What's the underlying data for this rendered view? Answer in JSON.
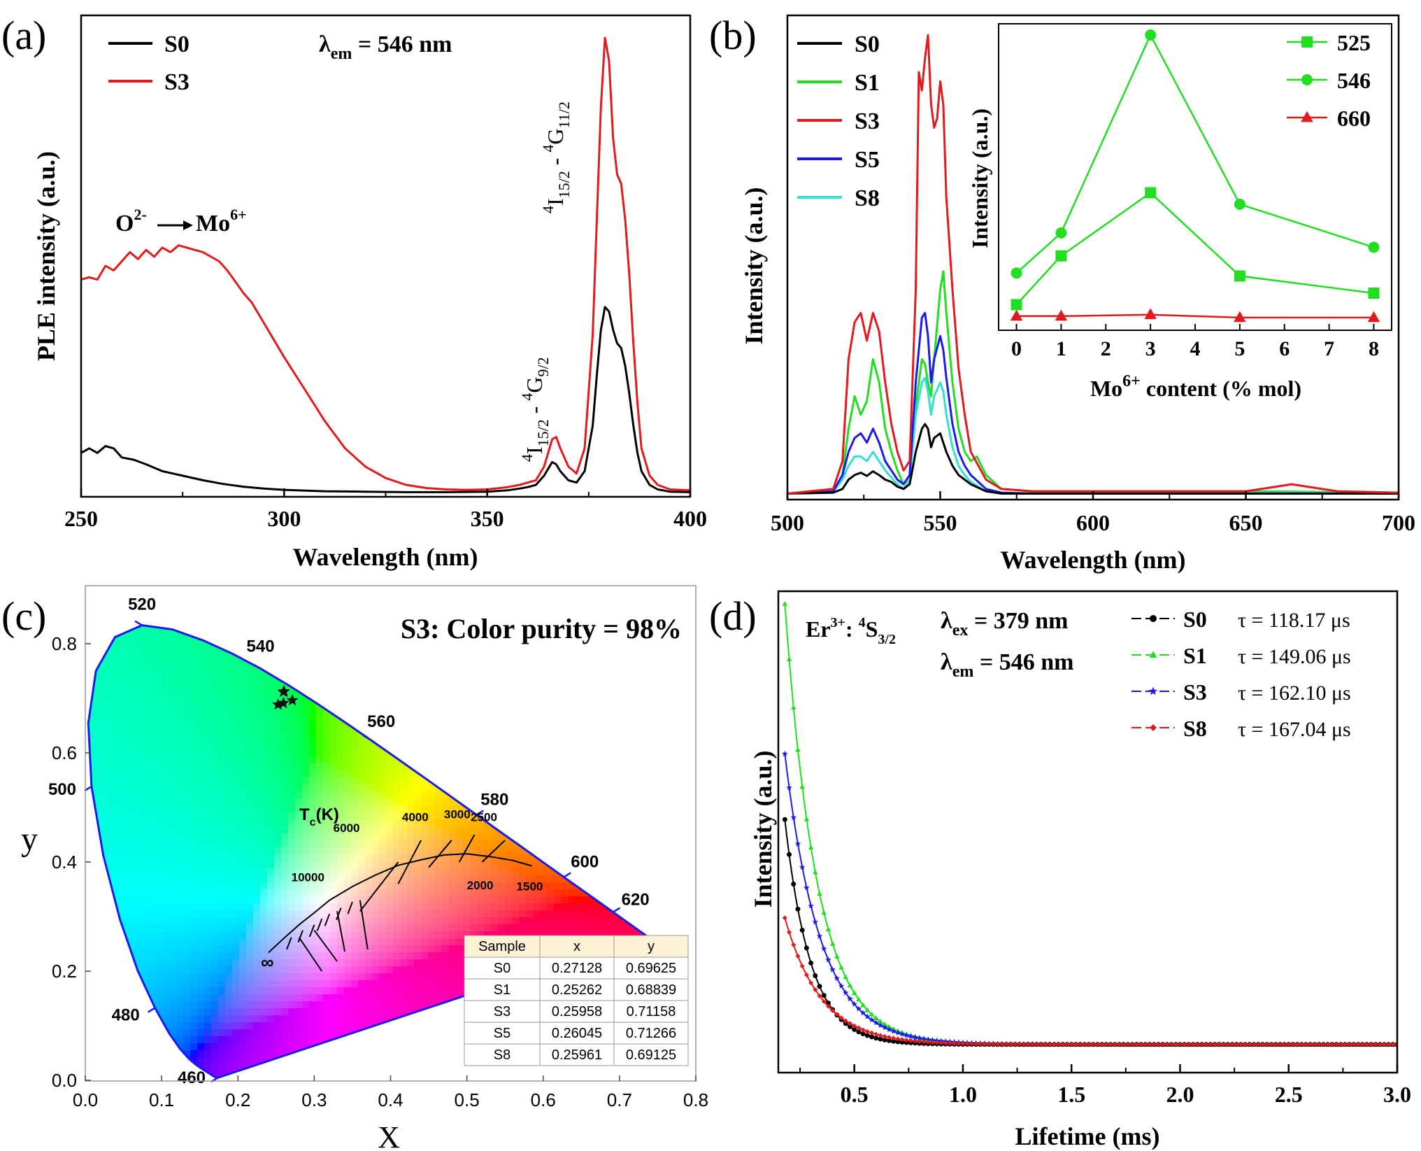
{
  "panel_labels": [
    "(a)",
    "(b)",
    "(c)",
    "(d)"
  ],
  "chart_data": [
    {
      "panel": "(a)",
      "type": "line",
      "xlabel": "Wavelength (nm)",
      "ylabel": "PLE intensity (a.u.)",
      "xlim": [
        250,
        400
      ],
      "xticks": [
        250,
        300,
        350,
        400
      ],
      "ylim": [
        0,
        1.0
      ],
      "annotation_lambda": {
        "main": "λ",
        "sub": "em",
        "rest": " = 546 nm"
      },
      "annotation_ct": {
        "left": "O",
        "left_sup": "2-",
        "right": "Mo",
        "right_sup": "6+"
      },
      "annotation_t1": {
        "sup1": "4",
        "a": "I",
        "sub_a": "15/2",
        "mid": " - ",
        "sup2": "4",
        "b": "G",
        "sub_b": "9/2"
      },
      "annotation_t2": {
        "sup1": "4",
        "a": "I",
        "sub_a": "15/2",
        "mid": " - ",
        "sup2": "4",
        "b": "G",
        "sub_b": "11/2"
      },
      "series": [
        {
          "name": "S0",
          "color": "#000000",
          "x": [
            250,
            252,
            254,
            256,
            258,
            260,
            263,
            266,
            270,
            275,
            280,
            285,
            290,
            295,
            300,
            310,
            320,
            330,
            340,
            350,
            355,
            358,
            360,
            362,
            364,
            366,
            367,
            368,
            370,
            372,
            374,
            376,
            377,
            378,
            379,
            380,
            381,
            382,
            383,
            384,
            385,
            386,
            387,
            388,
            390,
            392,
            395,
            400
          ],
          "y": [
            0.09,
            0.1,
            0.09,
            0.105,
            0.1,
            0.08,
            0.075,
            0.065,
            0.05,
            0.04,
            0.03,
            0.022,
            0.016,
            0.012,
            0.009,
            0.006,
            0.005,
            0.004,
            0.004,
            0.005,
            0.008,
            0.012,
            0.015,
            0.02,
            0.04,
            0.07,
            0.065,
            0.05,
            0.03,
            0.025,
            0.05,
            0.15,
            0.26,
            0.36,
            0.41,
            0.4,
            0.36,
            0.33,
            0.32,
            0.28,
            0.22,
            0.15,
            0.09,
            0.05,
            0.02,
            0.01,
            0.005,
            0.004
          ]
        },
        {
          "name": "S3",
          "color": "#e31a1c",
          "x": [
            250,
            252,
            254,
            256,
            258,
            260,
            262,
            264,
            266,
            268,
            270,
            272,
            274,
            276,
            278,
            280,
            282,
            284,
            286,
            288,
            290,
            292,
            294,
            296,
            298,
            300,
            305,
            310,
            315,
            320,
            325,
            330,
            335,
            340,
            345,
            350,
            355,
            358,
            360,
            362,
            364,
            366,
            367,
            368,
            370,
            372,
            374,
            376,
            377,
            378,
            379,
            380,
            381,
            382,
            383,
            384,
            385,
            386,
            387,
            388,
            390,
            392,
            395,
            400
          ],
          "y": [
            0.47,
            0.475,
            0.47,
            0.5,
            0.49,
            0.51,
            0.53,
            0.515,
            0.535,
            0.52,
            0.54,
            0.53,
            0.545,
            0.54,
            0.535,
            0.53,
            0.52,
            0.51,
            0.49,
            0.465,
            0.44,
            0.42,
            0.39,
            0.36,
            0.33,
            0.3,
            0.23,
            0.16,
            0.1,
            0.06,
            0.035,
            0.02,
            0.013,
            0.01,
            0.009,
            0.01,
            0.015,
            0.02,
            0.025,
            0.03,
            0.06,
            0.12,
            0.125,
            0.1,
            0.06,
            0.045,
            0.1,
            0.35,
            0.6,
            0.85,
            1.0,
            0.95,
            0.78,
            0.7,
            0.68,
            0.6,
            0.48,
            0.33,
            0.2,
            0.1,
            0.04,
            0.02,
            0.01,
            0.008
          ]
        }
      ]
    },
    {
      "panel": "(b)",
      "type": "line",
      "xlabel": "Wavelength (nm)",
      "ylabel": "Intensity (a.u.)",
      "xlim": [
        500,
        700
      ],
      "xticks": [
        500,
        550,
        600,
        650,
        700
      ],
      "ylim": [
        0,
        1.0
      ],
      "series": [
        {
          "name": "S0",
          "color": "#000000",
          "x": [
            500,
            515,
            518,
            520,
            522,
            524,
            526,
            528,
            530,
            532,
            534,
            536,
            538,
            540,
            542,
            544,
            545,
            546,
            547,
            548,
            550,
            551,
            552,
            554,
            556,
            558,
            560,
            565,
            570,
            580,
            600,
            650,
            700
          ],
          "y": [
            0.01,
            0.012,
            0.02,
            0.04,
            0.05,
            0.055,
            0.048,
            0.058,
            0.05,
            0.04,
            0.035,
            0.025,
            0.02,
            0.03,
            0.1,
            0.15,
            0.16,
            0.15,
            0.11,
            0.13,
            0.14,
            0.12,
            0.1,
            0.07,
            0.05,
            0.04,
            0.03,
            0.015,
            0.01,
            0.01,
            0.01,
            0.01,
            0.01
          ]
        },
        {
          "name": "S1",
          "color": "#22dd22",
          "x": [
            500,
            515,
            518,
            520,
            522,
            524,
            526,
            528,
            530,
            532,
            534,
            536,
            538,
            540,
            542,
            544,
            545,
            546,
            547,
            548,
            550,
            551,
            552,
            554,
            556,
            558,
            560,
            562,
            565,
            570,
            580,
            600,
            650,
            700
          ],
          "y": [
            0.01,
            0.015,
            0.05,
            0.15,
            0.22,
            0.18,
            0.21,
            0.3,
            0.25,
            0.15,
            0.1,
            0.06,
            0.03,
            0.05,
            0.2,
            0.3,
            0.29,
            0.25,
            0.22,
            0.3,
            0.45,
            0.49,
            0.4,
            0.25,
            0.15,
            0.1,
            0.08,
            0.09,
            0.05,
            0.02,
            0.015,
            0.015,
            0.015,
            0.012
          ]
        },
        {
          "name": "S3",
          "color": "#e31a1c",
          "x": [
            500,
            515,
            518,
            520,
            522,
            524,
            526,
            528,
            530,
            532,
            534,
            536,
            538,
            540,
            542,
            543,
            544,
            545,
            546,
            547,
            548,
            549,
            550,
            551,
            552,
            554,
            556,
            558,
            560,
            565,
            570,
            580,
            600,
            650,
            660,
            665,
            670,
            680,
            700
          ],
          "y": [
            0.01,
            0.02,
            0.08,
            0.3,
            0.38,
            0.4,
            0.34,
            0.4,
            0.36,
            0.25,
            0.16,
            0.1,
            0.06,
            0.08,
            0.45,
            0.92,
            0.88,
            0.95,
            1.0,
            0.85,
            0.8,
            0.82,
            0.9,
            0.85,
            0.65,
            0.45,
            0.28,
            0.18,
            0.1,
            0.04,
            0.02,
            0.015,
            0.015,
            0.015,
            0.025,
            0.03,
            0.025,
            0.015,
            0.012
          ]
        },
        {
          "name": "S5",
          "color": "#1a1aee",
          "x": [
            500,
            515,
            518,
            520,
            522,
            524,
            526,
            528,
            530,
            532,
            534,
            536,
            538,
            540,
            542,
            544,
            545,
            546,
            547,
            548,
            550,
            551,
            552,
            554,
            556,
            558,
            560,
            565,
            570,
            580,
            600,
            650,
            700
          ],
          "y": [
            0.01,
            0.015,
            0.05,
            0.1,
            0.13,
            0.14,
            0.12,
            0.15,
            0.12,
            0.08,
            0.06,
            0.04,
            0.03,
            0.05,
            0.25,
            0.39,
            0.4,
            0.35,
            0.25,
            0.3,
            0.35,
            0.32,
            0.26,
            0.16,
            0.1,
            0.07,
            0.05,
            0.02,
            0.012,
            0.01,
            0.01,
            0.01,
            0.01
          ]
        },
        {
          "name": "S8",
          "color": "#33e0d0",
          "x": [
            500,
            515,
            518,
            520,
            522,
            524,
            526,
            528,
            530,
            532,
            534,
            536,
            538,
            540,
            542,
            544,
            545,
            546,
            547,
            548,
            550,
            551,
            552,
            554,
            556,
            558,
            560,
            565,
            570,
            580,
            600,
            650,
            700
          ],
          "y": [
            0.01,
            0.014,
            0.04,
            0.07,
            0.09,
            0.09,
            0.08,
            0.1,
            0.08,
            0.06,
            0.045,
            0.03,
            0.02,
            0.04,
            0.18,
            0.25,
            0.26,
            0.23,
            0.18,
            0.22,
            0.25,
            0.23,
            0.18,
            0.11,
            0.07,
            0.05,
            0.035,
            0.015,
            0.01,
            0.01,
            0.012,
            0.012,
            0.012
          ]
        }
      ],
      "inset": {
        "type": "line",
        "xlabel": {
          "a": "Mo",
          "sup": "6+",
          "b": " content (% mol)"
        },
        "ylabel": "Intensity (a.u.)",
        "xlim": [
          -0.4,
          8.4
        ],
        "xticks": [
          0,
          1,
          2,
          3,
          4,
          5,
          6,
          7,
          8
        ],
        "ylim": [
          0,
          1.04
        ],
        "x": [
          0,
          1,
          3,
          5,
          8
        ],
        "series": [
          {
            "name": "525",
            "color": "#22dd22",
            "marker": "square",
            "values": [
              0.06,
              0.23,
              0.45,
              0.16,
              0.1
            ]
          },
          {
            "name": "546",
            "color": "#22dd22",
            "marker": "circle",
            "values": [
              0.17,
              0.31,
              1.0,
              0.41,
              0.26
            ]
          },
          {
            "name": "660",
            "color": "#e31a1c",
            "marker": "triangle",
            "values": [
              0.02,
              0.02,
              0.025,
              0.015,
              0.015
            ]
          }
        ]
      }
    },
    {
      "panel": "(c)",
      "type": "scatter",
      "xlabel": "X",
      "ylabel": "y",
      "xlim": [
        0.0,
        0.8
      ],
      "ylim": [
        0.0,
        0.86
      ],
      "xticks": [
        "0.0",
        "0.1",
        "0.2",
        "0.3",
        "0.4",
        "0.5",
        "0.6",
        "0.7",
        "0.8"
      ],
      "yticks": [
        "0.0",
        "0.2",
        "0.4",
        "0.6",
        "0.8"
      ],
      "title": "S3: Color purity = 98%",
      "tc_label": {
        "a": "T",
        "sub": "c",
        "b": "(K)"
      },
      "wavelength_labels": [
        {
          "text": "460",
          "x": 0.1741,
          "y": 0.005
        },
        {
          "text": "480",
          "x": 0.0913,
          "y": 0.1327
        },
        {
          "text": "500",
          "x": 0.0082,
          "y": 0.5384
        },
        {
          "text": "520",
          "x": 0.0743,
          "y": 0.8338
        },
        {
          "text": "540",
          "x": 0.2296,
          "y": 0.7543
        },
        {
          "text": "560",
          "x": 0.3731,
          "y": 0.6245
        },
        {
          "text": "580",
          "x": 0.5125,
          "y": 0.4866
        },
        {
          "text": "600",
          "x": 0.627,
          "y": 0.3725
        },
        {
          "text": "620",
          "x": 0.6915,
          "y": 0.3083
        }
      ],
      "cct_labels": [
        "10000",
        "6000",
        "4000",
        "3000",
        "2500",
        "2000",
        "1500",
        "∞"
      ],
      "points": [
        {
          "name": "S0",
          "x": 0.27128,
          "y": 0.69625
        },
        {
          "name": "S1",
          "x": 0.25262,
          "y": 0.68839
        },
        {
          "name": "S3",
          "x": 0.25958,
          "y": 0.71158
        },
        {
          "name": "S5",
          "x": 0.26045,
          "y": 0.71266
        },
        {
          "name": "S8",
          "x": 0.25961,
          "y": 0.69125
        }
      ],
      "table": {
        "columns": [
          "Sample",
          "x",
          "y"
        ],
        "rows": [
          [
            "S0",
            "0.27128",
            "0.69625"
          ],
          [
            "S1",
            "0.25262",
            "0.68839"
          ],
          [
            "S3",
            "0.25958",
            "0.71158"
          ],
          [
            "S5",
            "0.26045",
            "0.71266"
          ],
          [
            "S8",
            "0.25961",
            "0.69125"
          ]
        ]
      }
    },
    {
      "panel": "(d)",
      "type": "scatter",
      "xlabel": "Lifetime (ms)",
      "ylabel": "Intensity (a.u.)",
      "xlim": [
        0.15,
        3.0
      ],
      "xticks": [
        "0.5",
        "1.0",
        "1.5",
        "2.0",
        "2.5",
        "3.0"
      ],
      "ylim": [
        0,
        1.0
      ],
      "annotation_er": {
        "a": "Er",
        "sup1": "3+",
        "b": ": ",
        "sup2": "4",
        "c": "S",
        "sub": "3/2"
      },
      "annotation_ex": {
        "main": "λ",
        "sub": "ex",
        "rest": " = 379 nm"
      },
      "annotation_em": {
        "main": "λ",
        "sub": "em",
        "rest": " = 546 nm"
      },
      "baseline": 0.06,
      "series": [
        {
          "name": "S0",
          "tau_label": "τ = 118.17 μs",
          "tau_ms": 0.11817,
          "y0": 0.54,
          "color": "#000000",
          "marker": "circle"
        },
        {
          "name": "S1",
          "tau_label": "τ = 149.06 μs",
          "tau_ms": 0.14906,
          "y0": 1.0,
          "color": "#22dd22",
          "marker": "triangle"
        },
        {
          "name": "S3",
          "tau_label": "τ = 162.10 μs",
          "tau_ms": 0.1621,
          "y0": 0.68,
          "color": "#1a1aee",
          "marker": "star"
        },
        {
          "name": "S8",
          "tau_label": "τ = 167.04 μs",
          "tau_ms": 0.16704,
          "y0": 0.33,
          "color": "#e31a1c",
          "marker": "diamond"
        }
      ]
    }
  ]
}
